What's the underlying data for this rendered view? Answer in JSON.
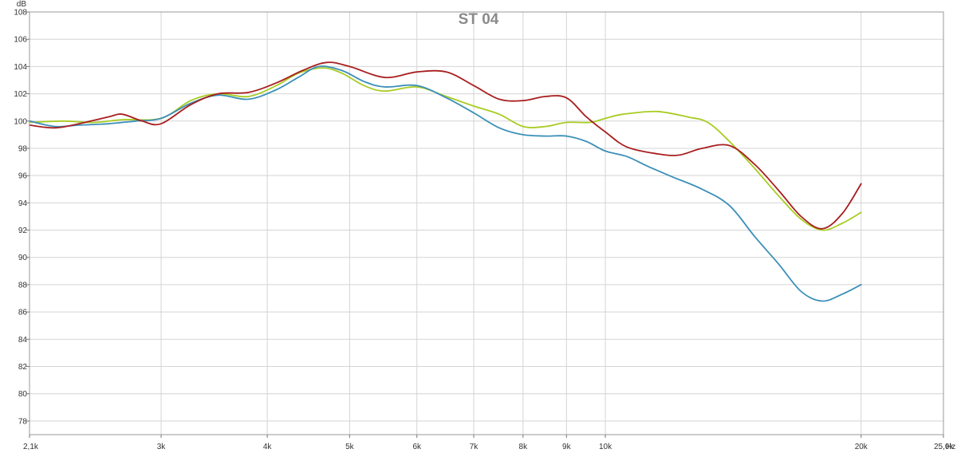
{
  "chart_data": {
    "type": "line",
    "title": "ST 04",
    "ylabel": "dB",
    "x_unit": "Hz",
    "x_scale": "log",
    "xlim": [
      2100,
      25000
    ],
    "ylim": [
      77,
      108
    ],
    "grid": true,
    "y_ticks": [
      78,
      80,
      82,
      84,
      86,
      88,
      90,
      92,
      94,
      96,
      98,
      100,
      102,
      104,
      106,
      108
    ],
    "x_ticks": [
      {
        "value": 2100,
        "label": "2,1k"
      },
      {
        "value": 3000,
        "label": "3k"
      },
      {
        "value": 4000,
        "label": "4k"
      },
      {
        "value": 5000,
        "label": "5k"
      },
      {
        "value": 6000,
        "label": "6k"
      },
      {
        "value": 7000,
        "label": "7k"
      },
      {
        "value": 8000,
        "label": "8k"
      },
      {
        "value": 9000,
        "label": "9k"
      },
      {
        "value": 10000,
        "label": "10k"
      },
      {
        "value": 20000,
        "label": "20k"
      },
      {
        "value": 25000,
        "label": "25,0k"
      }
    ],
    "series": [
      {
        "color": "#a8cc22",
        "points": [
          [
            2100,
            99.9
          ],
          [
            2300,
            100.0
          ],
          [
            2500,
            99.9
          ],
          [
            2700,
            100.1
          ],
          [
            3000,
            100.2
          ],
          [
            3250,
            101.5
          ],
          [
            3500,
            102.0
          ],
          [
            3800,
            101.8
          ],
          [
            4100,
            102.6
          ],
          [
            4350,
            103.5
          ],
          [
            4650,
            103.9
          ],
          [
            4900,
            103.5
          ],
          [
            5200,
            102.6
          ],
          [
            5500,
            102.2
          ],
          [
            6000,
            102.5
          ],
          [
            6500,
            101.8
          ],
          [
            7000,
            101.1
          ],
          [
            7500,
            100.5
          ],
          [
            8000,
            99.6
          ],
          [
            8500,
            99.6
          ],
          [
            9000,
            99.9
          ],
          [
            9600,
            99.9
          ],
          [
            10000,
            100.2
          ],
          [
            10500,
            100.5
          ],
          [
            11500,
            100.7
          ],
          [
            12500,
            100.3
          ],
          [
            13200,
            99.9
          ],
          [
            14000,
            98.5
          ],
          [
            15000,
            96.5
          ],
          [
            16000,
            94.5
          ],
          [
            17000,
            92.8
          ],
          [
            18000,
            92.0
          ],
          [
            19000,
            92.5
          ],
          [
            20000,
            93.3
          ]
        ]
      },
      {
        "color": "#3b8fb8",
        "points": [
          [
            2100,
            100.0
          ],
          [
            2250,
            99.6
          ],
          [
            2400,
            99.7
          ],
          [
            2600,
            99.8
          ],
          [
            2800,
            100.0
          ],
          [
            3000,
            100.2
          ],
          [
            3250,
            101.3
          ],
          [
            3500,
            101.9
          ],
          [
            3800,
            101.6
          ],
          [
            4100,
            102.3
          ],
          [
            4350,
            103.2
          ],
          [
            4600,
            104.0
          ],
          [
            4900,
            103.7
          ],
          [
            5200,
            102.9
          ],
          [
            5500,
            102.5
          ],
          [
            6000,
            102.6
          ],
          [
            6500,
            101.7
          ],
          [
            7000,
            100.6
          ],
          [
            7500,
            99.5
          ],
          [
            8000,
            99.0
          ],
          [
            8500,
            98.9
          ],
          [
            9000,
            98.9
          ],
          [
            9500,
            98.5
          ],
          [
            10000,
            97.8
          ],
          [
            10600,
            97.4
          ],
          [
            11200,
            96.7
          ],
          [
            12000,
            95.9
          ],
          [
            13000,
            95.0
          ],
          [
            14000,
            93.8
          ],
          [
            15000,
            91.5
          ],
          [
            16000,
            89.5
          ],
          [
            17000,
            87.5
          ],
          [
            18000,
            86.8
          ],
          [
            19000,
            87.3
          ],
          [
            20000,
            88.0
          ]
        ]
      },
      {
        "color": "#a81e1e",
        "points": [
          [
            2100,
            99.7
          ],
          [
            2250,
            99.5
          ],
          [
            2400,
            99.8
          ],
          [
            2600,
            100.3
          ],
          [
            2700,
            100.5
          ],
          [
            2850,
            100.0
          ],
          [
            3000,
            99.8
          ],
          [
            3250,
            101.2
          ],
          [
            3500,
            102.0
          ],
          [
            3800,
            102.1
          ],
          [
            4100,
            102.8
          ],
          [
            4400,
            103.7
          ],
          [
            4700,
            104.3
          ],
          [
            5000,
            104.0
          ],
          [
            5500,
            103.2
          ],
          [
            6000,
            103.6
          ],
          [
            6500,
            103.6
          ],
          [
            7000,
            102.6
          ],
          [
            7500,
            101.6
          ],
          [
            8000,
            101.5
          ],
          [
            8500,
            101.8
          ],
          [
            9000,
            101.7
          ],
          [
            9500,
            100.3
          ],
          [
            10000,
            99.2
          ],
          [
            10600,
            98.1
          ],
          [
            11500,
            97.6
          ],
          [
            12200,
            97.5
          ],
          [
            13000,
            98.0
          ],
          [
            14000,
            98.2
          ],
          [
            15000,
            96.8
          ],
          [
            16000,
            94.9
          ],
          [
            17000,
            93.0
          ],
          [
            18000,
            92.1
          ],
          [
            19000,
            93.2
          ],
          [
            20000,
            95.4
          ]
        ]
      }
    ]
  }
}
